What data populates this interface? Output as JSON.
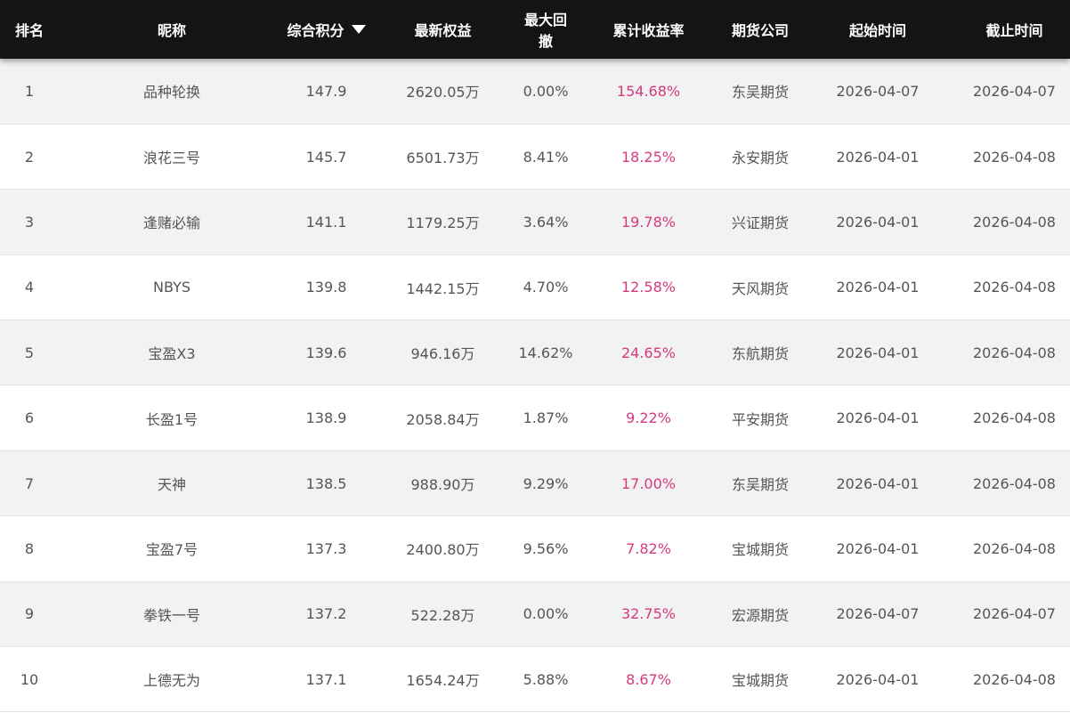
{
  "table": {
    "headers": {
      "rank": "排名",
      "name": "昵称",
      "score": "综合积分",
      "equity": "最新权益",
      "drawdown": "最大回撤",
      "return": "累计收益率",
      "broker": "期货公司",
      "start": "起始时间",
      "end": "截止时间"
    },
    "sort_indicator_icon": "triangle-down-icon",
    "accent_color": "#d6397f",
    "rows": [
      {
        "rank": "1",
        "name": "品种轮换",
        "score": "147.9",
        "equity": "2620.05万",
        "drawdown": "0.00%",
        "return": "154.68%",
        "broker": "东吴期货",
        "start": "2026-04-07",
        "end": "2026-04-07"
      },
      {
        "rank": "2",
        "name": "浪花三号",
        "score": "145.7",
        "equity": "6501.73万",
        "drawdown": "8.41%",
        "return": "18.25%",
        "broker": "永安期货",
        "start": "2026-04-01",
        "end": "2026-04-08"
      },
      {
        "rank": "3",
        "name": "逢赌必输",
        "score": "141.1",
        "equity": "1179.25万",
        "drawdown": "3.64%",
        "return": "19.78%",
        "broker": "兴证期货",
        "start": "2026-04-01",
        "end": "2026-04-08"
      },
      {
        "rank": "4",
        "name": "NBYS",
        "score": "139.8",
        "equity": "1442.15万",
        "drawdown": "4.70%",
        "return": "12.58%",
        "broker": "天风期货",
        "start": "2026-04-01",
        "end": "2026-04-08"
      },
      {
        "rank": "5",
        "name": "宝盈X3",
        "score": "139.6",
        "equity": "946.16万",
        "drawdown": "14.62%",
        "return": "24.65%",
        "broker": "东航期货",
        "start": "2026-04-01",
        "end": "2026-04-08"
      },
      {
        "rank": "6",
        "name": "长盈1号",
        "score": "138.9",
        "equity": "2058.84万",
        "drawdown": "1.87%",
        "return": "9.22%",
        "broker": "平安期货",
        "start": "2026-04-01",
        "end": "2026-04-08"
      },
      {
        "rank": "7",
        "name": "天神",
        "score": "138.5",
        "equity": "988.90万",
        "drawdown": "9.29%",
        "return": "17.00%",
        "broker": "东吴期货",
        "start": "2026-04-01",
        "end": "2026-04-08"
      },
      {
        "rank": "8",
        "name": "宝盈7号",
        "score": "137.3",
        "equity": "2400.80万",
        "drawdown": "9.56%",
        "return": "7.82%",
        "broker": "宝城期货",
        "start": "2026-04-01",
        "end": "2026-04-08"
      },
      {
        "rank": "9",
        "name": "拳铁一号",
        "score": "137.2",
        "equity": "522.28万",
        "drawdown": "0.00%",
        "return": "32.75%",
        "broker": "宏源期货",
        "start": "2026-04-07",
        "end": "2026-04-07"
      },
      {
        "rank": "10",
        "name": "上德无为",
        "score": "137.1",
        "equity": "1654.24万",
        "drawdown": "5.88%",
        "return": "8.67%",
        "broker": "宝城期货",
        "start": "2026-04-01",
        "end": "2026-04-08"
      }
    ]
  }
}
